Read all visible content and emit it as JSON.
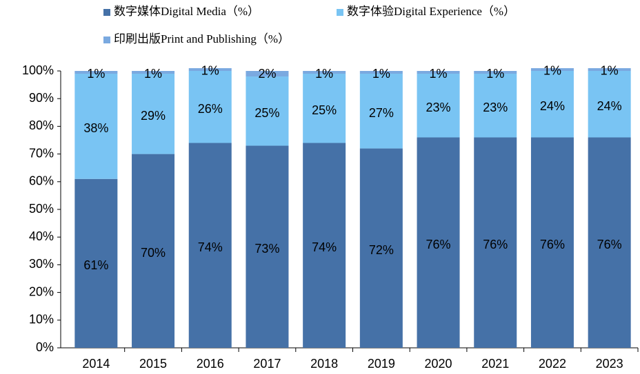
{
  "chart_data": {
    "type": "stacked_bar",
    "categories": [
      "2014",
      "2015",
      "2016",
      "2017",
      "2018",
      "2019",
      "2020",
      "2021",
      "2022",
      "2023"
    ],
    "series": [
      {
        "name": "数字媒体Digital Media（%）",
        "color": "#4571a7",
        "values": [
          61,
          70,
          74,
          73,
          74,
          72,
          76,
          76,
          76,
          76
        ],
        "value_labels": [
          "61%",
          "70%",
          "74%",
          "73%",
          "74%",
          "72%",
          "76%",
          "76%",
          "76%",
          "76%"
        ]
      },
      {
        "name": "数字体验Digital Experience（%）",
        "color": "#79c4f3",
        "values": [
          38,
          29,
          26,
          25,
          25,
          27,
          23,
          23,
          24,
          24
        ],
        "value_labels": [
          "38%",
          "29%",
          "26%",
          "25%",
          "25%",
          "27%",
          "23%",
          "23%",
          "24%",
          "24%"
        ]
      },
      {
        "name": "印刷出版Print and Publishing（%）",
        "color": "#7aa9e0",
        "values": [
          1,
          1,
          1,
          2,
          1,
          1,
          1,
          1,
          1,
          1
        ],
        "value_labels": [
          "1%",
          "1%",
          "1%",
          "2%",
          "1%",
          "1%",
          "1%",
          "1%",
          "1%",
          "1%"
        ]
      }
    ],
    "ylim": [
      0,
      100
    ],
    "yticks": [
      {
        "value": 0,
        "label": "0%"
      },
      {
        "value": 10,
        "label": "10%"
      },
      {
        "value": 20,
        "label": "20%"
      },
      {
        "value": 30,
        "label": "30%"
      },
      {
        "value": 40,
        "label": "40%"
      },
      {
        "value": 50,
        "label": "50%"
      },
      {
        "value": 60,
        "label": "60%"
      },
      {
        "value": 70,
        "label": "70%"
      },
      {
        "value": 80,
        "label": "80%"
      },
      {
        "value": 90,
        "label": "90%"
      },
      {
        "value": 100,
        "label": "100%"
      }
    ],
    "grid": false
  }
}
